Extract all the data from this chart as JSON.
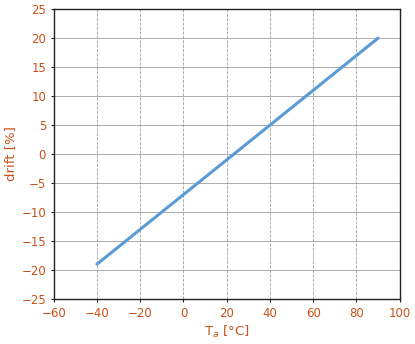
{
  "x_start": -40,
  "x_end": 90,
  "y_start": -19,
  "y_end": 20,
  "xlim": [
    -60,
    100
  ],
  "ylim": [
    -25,
    25
  ],
  "xticks": [
    -60,
    -40,
    -20,
    0,
    20,
    40,
    60,
    80,
    100
  ],
  "yticks": [
    -25,
    -20,
    -15,
    -10,
    -5,
    0,
    5,
    10,
    15,
    20,
    25
  ],
  "xlabel": "T$_a$ [°C]",
  "ylabel": "drift [%]",
  "line_color": "#5b9bd5",
  "line_width": 2.2,
  "hgrid_color": "#888888",
  "vgrid_color": "#888888",
  "background_color": "#ffffff",
  "tick_label_color": "#c8521a",
  "axis_label_color": "#c8521a",
  "spine_color": "#222222",
  "tick_label_fontsize": 8.5,
  "axis_label_fontsize": 9.5
}
